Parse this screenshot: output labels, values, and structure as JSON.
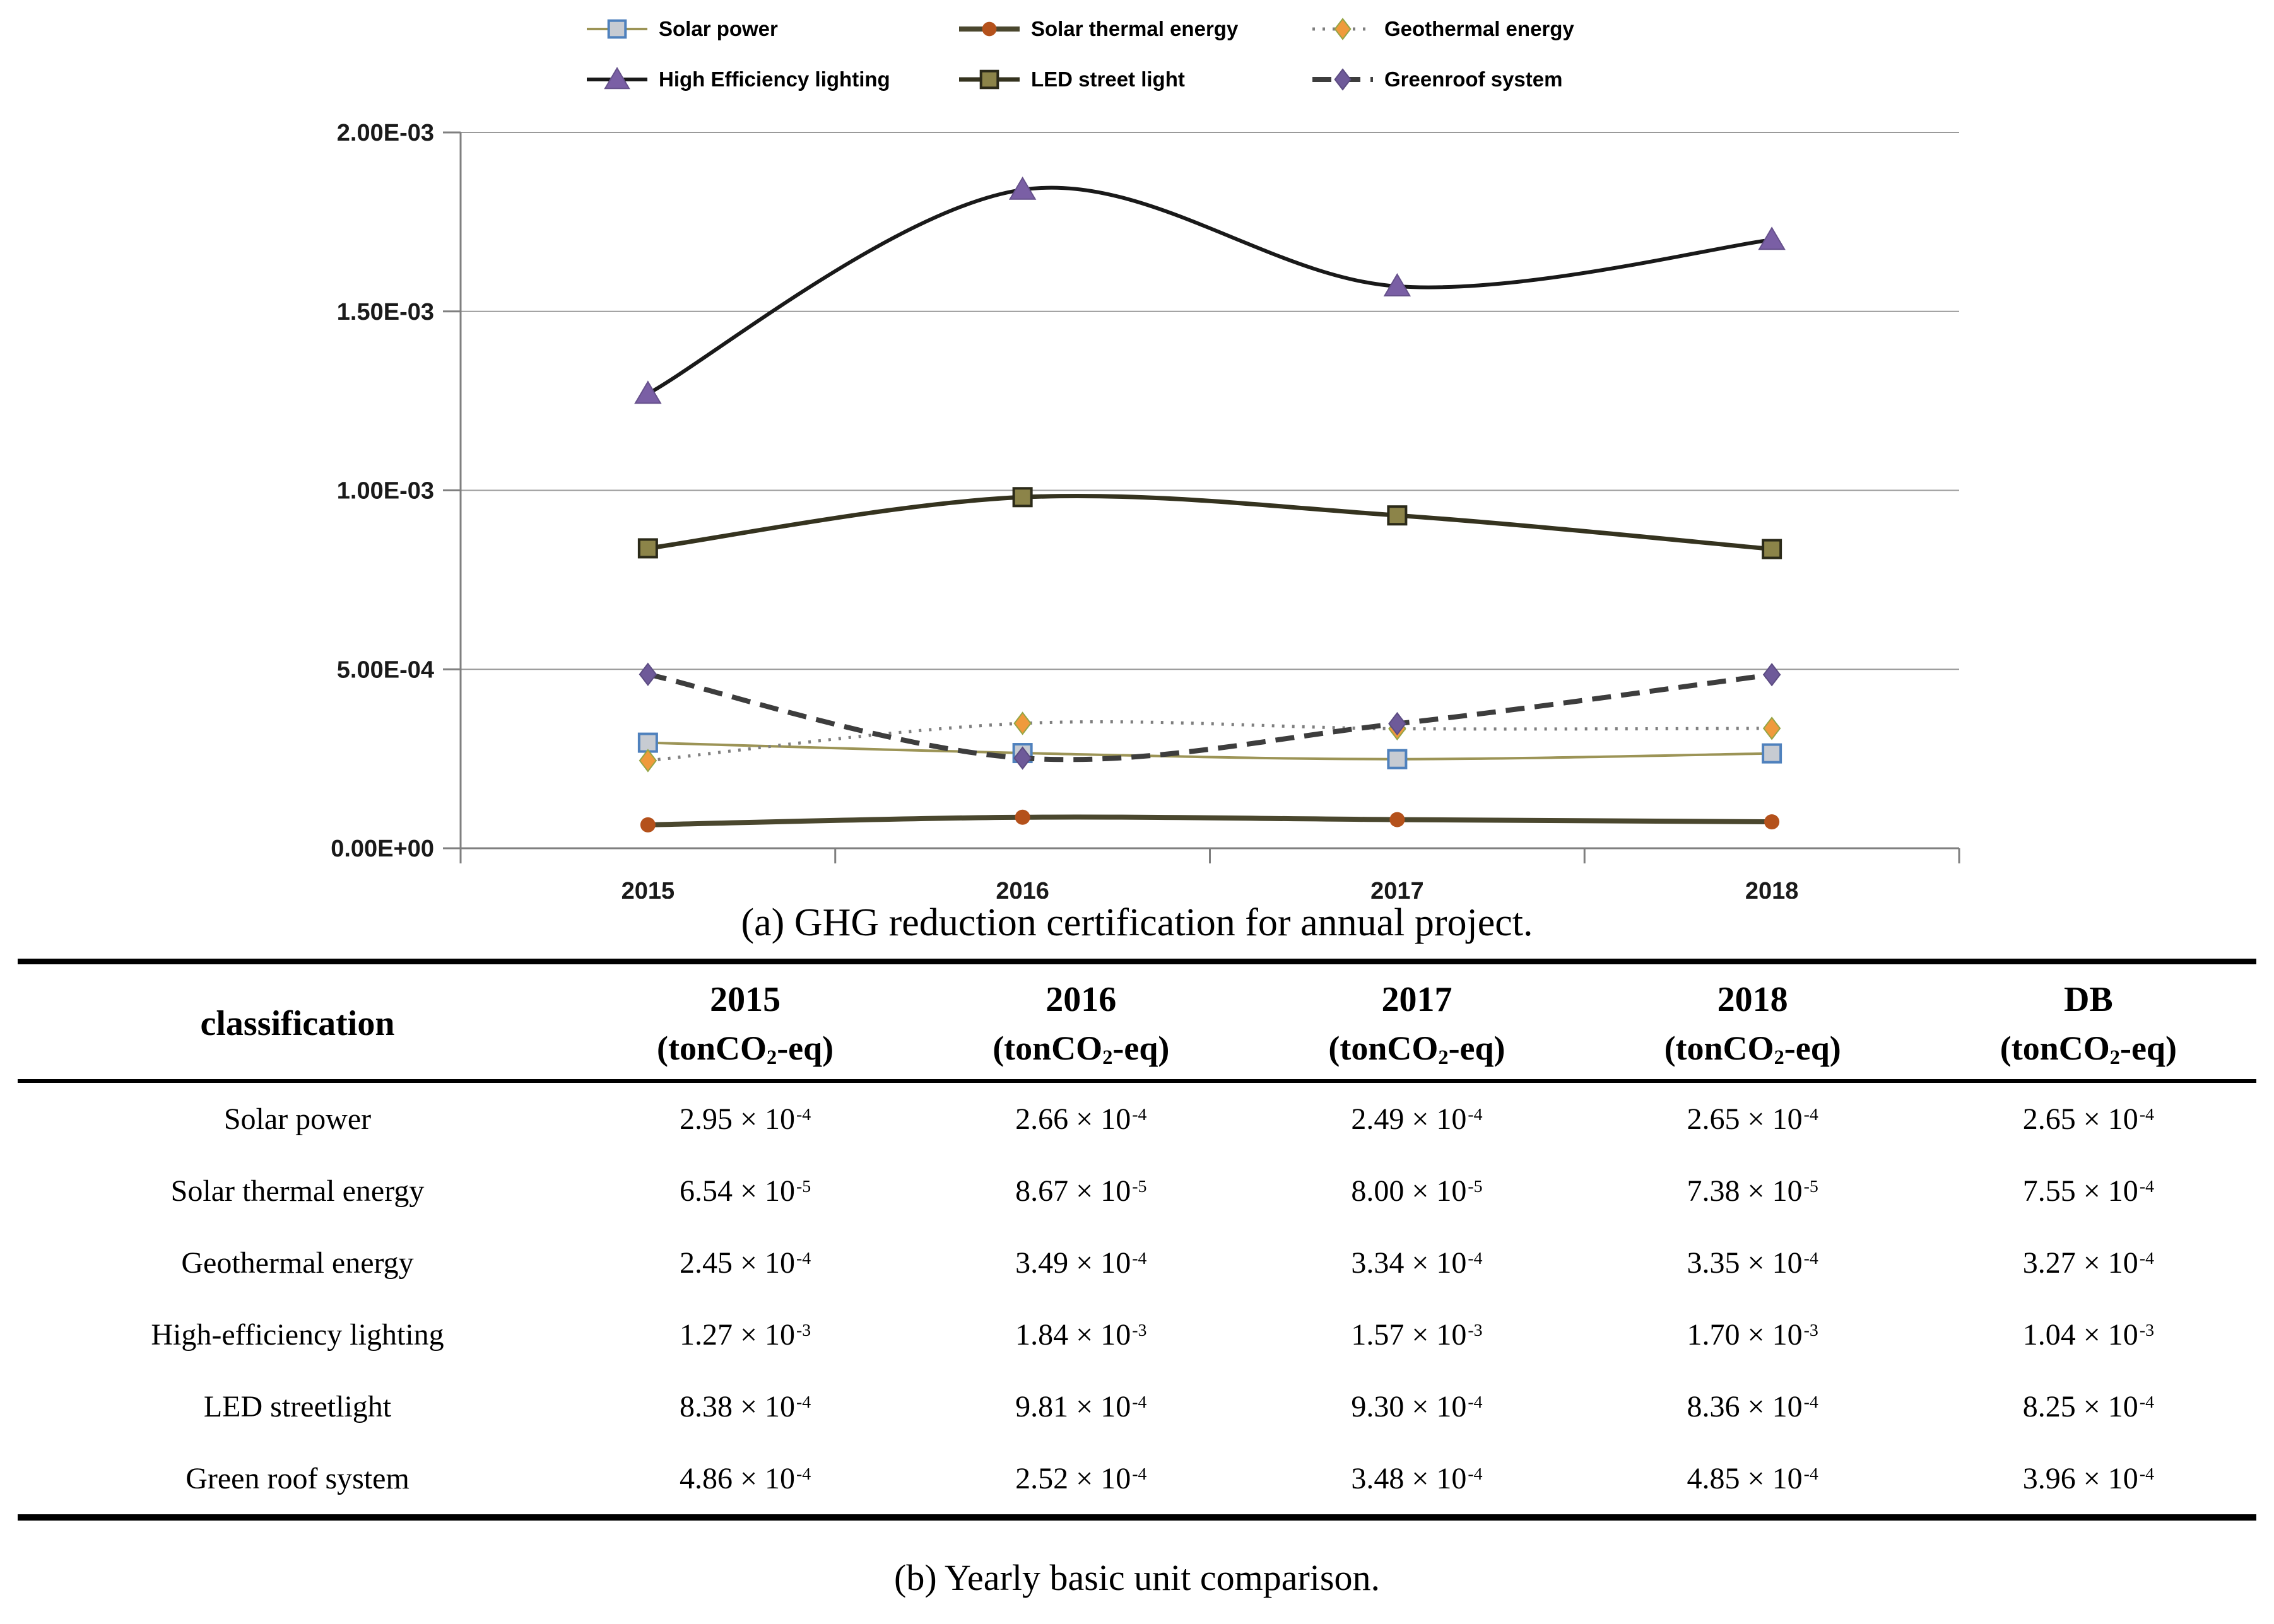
{
  "figure": {
    "caption_a": "(a) GHG reduction certification for annual project.",
    "caption_b": "(b) Yearly basic unit comparison."
  },
  "chart_data": {
    "type": "line",
    "title": "",
    "xlabel": "",
    "ylabel": "",
    "grid": true,
    "legend_position": "top",
    "categories": [
      "2015",
      "2016",
      "2017",
      "2018"
    ],
    "y_axis": {
      "min": 0,
      "max": 0.002,
      "ticks": [
        {
          "v": 0.0,
          "label": "0.00E+00"
        },
        {
          "v": 0.0005,
          "label": "5.00E-04"
        },
        {
          "v": 0.001,
          "label": "1.00E-03"
        },
        {
          "v": 0.0015,
          "label": "1.50E-03"
        },
        {
          "v": 0.002,
          "label": "2.00E-03"
        }
      ]
    },
    "legend_rows": [
      [
        0,
        1,
        2
      ],
      [
        3,
        4,
        5
      ]
    ],
    "series": [
      {
        "name": "Solar power",
        "values": [
          0.000295,
          0.000266,
          0.000249,
          0.000265
        ],
        "line_color": "#9C9456",
        "line_width": 4,
        "dash": "solid",
        "marker": "square",
        "marker_fill": "#C7CBD2",
        "marker_stroke": "#4F81BD"
      },
      {
        "name": "Solar thermal energy",
        "values": [
          6.54e-05,
          8.67e-05,
          8e-05,
          7.38e-05
        ],
        "line_color": "#4A472E",
        "line_width": 8,
        "dash": "solid",
        "marker": "circle",
        "marker_fill": "#B4511B",
        "marker_stroke": "#B4511B"
      },
      {
        "name": "Geothermal energy",
        "values": [
          0.000245,
          0.000349,
          0.000334,
          0.000335
        ],
        "line_color": "#7F7F7F",
        "line_width": 5,
        "dash": "dot",
        "marker": "diamond",
        "marker_fill": "#EF9A3C",
        "marker_stroke": "#94A545"
      },
      {
        "name": "High Efficiency lighting",
        "values": [
          0.00127,
          0.00184,
          0.00157,
          0.0017
        ],
        "line_color": "#191919",
        "line_width": 6,
        "dash": "solid",
        "marker": "triangle",
        "marker_fill": "#7A5FA5",
        "marker_stroke": "#66518B"
      },
      {
        "name": "LED street light",
        "values": [
          0.000838,
          0.000981,
          0.00093,
          0.000836
        ],
        "line_color": "#35331F",
        "line_width": 7,
        "dash": "solid",
        "marker": "square",
        "marker_fill": "#8C8449",
        "marker_stroke": "#2B2A19"
      },
      {
        "name": "Greenroof system",
        "values": [
          0.000486,
          0.000252,
          0.000348,
          0.000485
        ],
        "line_color": "#3D3D3D",
        "line_width": 8,
        "dash": "dash",
        "marker": "diamond",
        "marker_fill": "#6E5A99",
        "marker_stroke": "#5C4C82"
      }
    ]
  },
  "table": {
    "header": {
      "classification": "classification",
      "cols": [
        {
          "line1": "2015",
          "unit": [
            "(tonCO",
            "2",
            "-eq)"
          ]
        },
        {
          "line1": "2016",
          "unit": [
            "(tonCO",
            "2",
            "-eq)"
          ]
        },
        {
          "line1": "2017",
          "unit": [
            "(tonCO",
            "2",
            "-eq)"
          ]
        },
        {
          "line1": "2018",
          "unit": [
            "(tonCO",
            "2",
            "-eq)"
          ]
        },
        {
          "line1": "DB",
          "unit": [
            "(tonCO",
            "2",
            "-eq)"
          ]
        }
      ]
    },
    "rows": [
      {
        "label": "Solar power",
        "values": [
          {
            "m": "2.95 × 10",
            "e": "-4"
          },
          {
            "m": "2.66 × 10",
            "e": "-4"
          },
          {
            "m": "2.49 × 10",
            "e": "-4"
          },
          {
            "m": "2.65 × 10",
            "e": "-4"
          },
          {
            "m": "2.65 × 10",
            "e": "-4"
          }
        ]
      },
      {
        "label": "Solar thermal energy",
        "values": [
          {
            "m": "6.54 × 10",
            "e": "-5"
          },
          {
            "m": "8.67 × 10",
            "e": "-5"
          },
          {
            "m": "8.00 × 10",
            "e": "-5"
          },
          {
            "m": "7.38 × 10",
            "e": "-5"
          },
          {
            "m": "7.55 × 10",
            "e": "-4"
          }
        ]
      },
      {
        "label": "Geothermal energy",
        "values": [
          {
            "m": "2.45 × 10",
            "e": "-4"
          },
          {
            "m": "3.49 × 10",
            "e": "-4"
          },
          {
            "m": "3.34 × 10",
            "e": "-4"
          },
          {
            "m": "3.35 × 10",
            "e": "-4"
          },
          {
            "m": "3.27 × 10",
            "e": "-4"
          }
        ]
      },
      {
        "label": "High-efficiency lighting",
        "values": [
          {
            "m": "1.27 × 10",
            "e": "-3"
          },
          {
            "m": "1.84 × 10",
            "e": "-3"
          },
          {
            "m": "1.57 × 10",
            "e": "-3"
          },
          {
            "m": "1.70 × 10",
            "e": "-3"
          },
          {
            "m": "1.04 × 10",
            "e": "-3"
          }
        ]
      },
      {
        "label": "LED streetlight",
        "values": [
          {
            "m": "8.38 × 10",
            "e": "-4"
          },
          {
            "m": "9.81 × 10",
            "e": "-4"
          },
          {
            "m": "9.30 × 10",
            "e": "-4"
          },
          {
            "m": "8.36 × 10",
            "e": "-4"
          },
          {
            "m": "8.25 × 10",
            "e": "-4"
          }
        ]
      },
      {
        "label": "Green roof system",
        "values": [
          {
            "m": "4.86 × 10",
            "e": "-4"
          },
          {
            "m": "2.52 × 10",
            "e": "-4"
          },
          {
            "m": "3.48 × 10",
            "e": "-4"
          },
          {
            "m": "4.85 × 10",
            "e": "-4"
          },
          {
            "m": "3.96 × 10",
            "e": "-4"
          }
        ]
      }
    ]
  }
}
